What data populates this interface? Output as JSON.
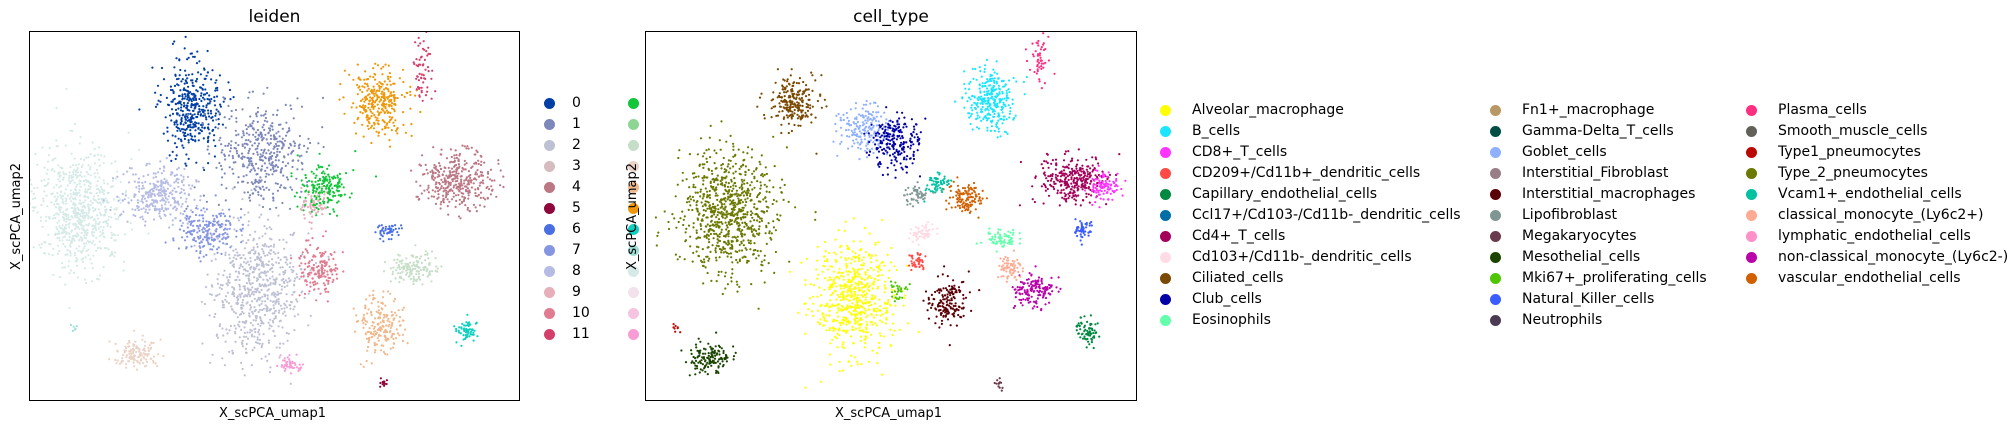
{
  "figure": {
    "panels": [
      {
        "title": "leiden",
        "xlabel": "X_scPCA_umap1",
        "ylabel": "X_scPCA_umap2"
      },
      {
        "title": "cell_type",
        "xlabel": "X_scPCA_umap1",
        "ylabel": "X_scPCA_umap2"
      }
    ],
    "leiden_legend": [
      {
        "label": "0",
        "color": "#023fa5"
      },
      {
        "label": "1",
        "color": "#7d87b9"
      },
      {
        "label": "2",
        "color": "#bec1d4"
      },
      {
        "label": "3",
        "color": "#d6bcc0"
      },
      {
        "label": "4",
        "color": "#bb7784"
      },
      {
        "label": "5",
        "color": "#8e063b"
      },
      {
        "label": "6",
        "color": "#4a6fe3"
      },
      {
        "label": "7",
        "color": "#8595e1"
      },
      {
        "label": "8",
        "color": "#b5bbe3"
      },
      {
        "label": "9",
        "color": "#e6afb9"
      },
      {
        "label": "10",
        "color": "#e07b91"
      },
      {
        "label": "11",
        "color": "#d33f6a"
      }
    ],
    "leiden_legend_col2": [
      {
        "color": "#11c638"
      },
      {
        "color": "#8dd593"
      },
      {
        "color": "#c6dec7"
      },
      {
        "color": "#ead3c6"
      },
      {
        "color": "#f0b98d"
      },
      {
        "color": "#ef9708"
      },
      {
        "color": "#0fcfc0"
      },
      {
        "color": "#9cded6"
      },
      {
        "color": "#d5eae7"
      },
      {
        "color": "#f3e1eb"
      },
      {
        "color": "#f6c4e1"
      },
      {
        "color": "#f79cd4"
      }
    ],
    "celltype_legend": [
      {
        "label": "Alveolar_macrophage",
        "color": "#ffff00"
      },
      {
        "label": "B_cells",
        "color": "#1ce6ff"
      },
      {
        "label": "CD8+_T_cells",
        "color": "#ff34ff"
      },
      {
        "label": "CD209+/Cd11b+_dendritic_cells",
        "color": "#ff4a46"
      },
      {
        "label": "Capillary_endothelial_cells",
        "color": "#008941"
      },
      {
        "label": "Ccl17+/Cd103-/Cd11b-_dendritic_cells",
        "color": "#006fa6"
      },
      {
        "label": "Cd4+_T_cells",
        "color": "#a30059"
      },
      {
        "label": "Cd103+/Cd11b-_dendritic_cells",
        "color": "#ffdbe5"
      },
      {
        "label": "Ciliated_cells",
        "color": "#7a4900"
      },
      {
        "label": "Club_cells",
        "color": "#0000a6"
      },
      {
        "label": "Eosinophils",
        "color": "#63ffac"
      },
      {
        "label": "Fn1+_macrophage",
        "color": "#b79762"
      },
      {
        "label": "Gamma-Delta_T_cells",
        "color": "#004d43"
      },
      {
        "label": "Goblet_cells",
        "color": "#8fb0ff"
      },
      {
        "label": "Interstitial_Fibroblast",
        "color": "#997d87"
      },
      {
        "label": "Interstitial_macrophages",
        "color": "#5a0007"
      },
      {
        "label": "Lipofibroblast",
        "color": "#809693"
      },
      {
        "label": "Megakaryocytes",
        "color": "#6a3a4c"
      },
      {
        "label": "Mesothelial_cells",
        "color": "#1b4400"
      },
      {
        "label": "Mki67+_proliferating_cells",
        "color": "#4fc601"
      },
      {
        "label": "Natural_Killer_cells",
        "color": "#3b5dff"
      },
      {
        "label": "Neutrophils",
        "color": "#4a3b53"
      },
      {
        "label": "Plasma_cells",
        "color": "#ff2f80"
      },
      {
        "label": "Smooth_muscle_cells",
        "color": "#61615a"
      },
      {
        "label": "Type1_pneumocytes",
        "color": "#ba0900"
      },
      {
        "label": "Type_2_pneumocytes",
        "color": "#6b7900"
      },
      {
        "label": "Vcam1+_endothelial_cells",
        "color": "#00c2a0"
      },
      {
        "label": "classical_monocyte_(Ly6c2+)",
        "color": "#ffaa92"
      },
      {
        "label": "lymphatic_endothelial_cells",
        "color": "#ff90c9"
      },
      {
        "label": "non-classical_monocyte_(Ly6c2-)",
        "color": "#b903aa"
      },
      {
        "label": "vascular_endothelial_cells",
        "color": "#d16100"
      }
    ]
  },
  "chart_data": [
    {
      "type": "scatter",
      "title": "leiden",
      "xlabel": "X_scPCA_umap1",
      "ylabel": "X_scPCA_umap2",
      "grid": false,
      "legend_position": "right",
      "series": [
        {
          "name": "0",
          "color": "#023fa5",
          "x": [
            0.33
          ],
          "y": [
            0.82
          ]
        },
        {
          "name": "1",
          "color": "#7d87b9",
          "x": [
            0.46
          ],
          "y": [
            0.68
          ]
        },
        {
          "name": "2",
          "color": "#bec1d4",
          "x": [
            0.46
          ],
          "y": [
            0.25
          ]
        },
        {
          "name": "3",
          "color": "#d6bcc0",
          "x": [
            0.87
          ],
          "y": [
            0.45
          ]
        },
        {
          "name": "4",
          "color": "#bb7784",
          "x": [
            0.88
          ],
          "y": [
            0.62
          ]
        },
        {
          "name": "5",
          "color": "#8e063b",
          "x": [
            0.72
          ],
          "y": [
            0.05
          ]
        },
        {
          "name": "6",
          "color": "#4a6fe3",
          "x": [
            0.73
          ],
          "y": [
            0.45
          ]
        },
        {
          "name": "7",
          "color": "#8595e1",
          "x": [
            0.47
          ],
          "y": [
            0.58
          ]
        },
        {
          "name": "8",
          "color": "#b5bbe3",
          "x": [
            0.27
          ],
          "y": [
            0.45
          ]
        },
        {
          "name": "9",
          "color": "#e6afb9",
          "x": [
            0.53
          ],
          "y": [
            0.12
          ]
        },
        {
          "name": "10",
          "color": "#e07b91",
          "x": [
            0.6
          ],
          "y": [
            0.35
          ]
        },
        {
          "name": "11",
          "color": "#d33f6a",
          "x": [
            0.8
          ],
          "y": [
            0.92
          ]
        }
      ]
    },
    {
      "type": "scatter",
      "title": "cell_type",
      "xlabel": "X_scPCA_umap1",
      "ylabel": "X_scPCA_umap2",
      "grid": false,
      "legend_position": "right",
      "series": [
        {
          "name": "Alveolar_macrophage",
          "color": "#ffff00",
          "x": [
            0.46
          ],
          "y": [
            0.25
          ]
        },
        {
          "name": "B_cells",
          "color": "#1ce6ff",
          "x": [
            0.69
          ],
          "y": [
            0.78
          ]
        },
        {
          "name": "CD8+_T_cells",
          "color": "#ff34ff",
          "x": [
            0.92
          ],
          "y": [
            0.6
          ]
        },
        {
          "name": "Ciliated_cells",
          "color": "#7a4900",
          "x": [
            0.33
          ],
          "y": [
            0.82
          ]
        },
        {
          "name": "Club_cells",
          "color": "#0000a6",
          "x": [
            0.48
          ],
          "y": [
            0.66
          ]
        },
        {
          "name": "Type_2_pneumocytes",
          "color": "#6b7900",
          "x": [
            0.22
          ],
          "y": [
            0.48
          ]
        },
        {
          "name": "Cd4+_T_cells",
          "color": "#a30059",
          "x": [
            0.86
          ],
          "y": [
            0.62
          ]
        },
        {
          "name": "Mesothelial_cells",
          "color": "#1b4400",
          "x": [
            0.13
          ],
          "y": [
            0.15
          ]
        },
        {
          "name": "Interstitial_macrophages",
          "color": "#5a0007",
          "x": [
            0.64
          ],
          "y": [
            0.2
          ]
        },
        {
          "name": "non-classical_monocyte_(Ly6c2-)",
          "color": "#b903aa",
          "x": [
            0.8
          ],
          "y": [
            0.28
          ]
        },
        {
          "name": "vascular_endothelial_cells",
          "color": "#d16100",
          "x": [
            0.65
          ],
          "y": [
            0.52
          ]
        },
        {
          "name": "Capillary_endothelial_cells",
          "color": "#008941",
          "x": [
            0.9
          ],
          "y": [
            0.18
          ]
        },
        {
          "name": "Gamma-Delta_T_cells",
          "color": "#004d43",
          "x": [
            0.58
          ],
          "y": [
            0.45
          ]
        }
      ]
    }
  ]
}
